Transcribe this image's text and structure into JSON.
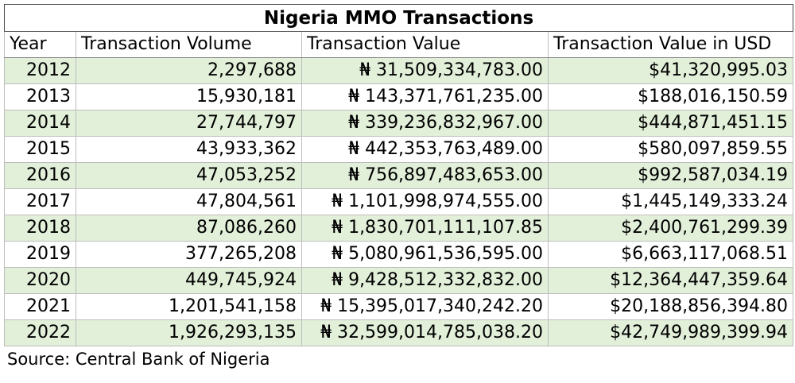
{
  "chart_data": {
    "type": "table",
    "title": "Nigeria MMO Transactions",
    "columns": [
      "Year",
      "Transaction Volume",
      "Transaction Value",
      "Transaction Value in USD"
    ],
    "rows": [
      [
        "2012",
        "2,297,688",
        "₦ 31,509,334,783.00",
        "$41,320,995.03"
      ],
      [
        "2013",
        "15,930,181",
        "₦ 143,371,761,235.00",
        "$188,016,150.59"
      ],
      [
        "2014",
        "27,744,797",
        "₦ 339,236,832,967.00",
        "$444,871,451.15"
      ],
      [
        "2015",
        "43,933,362",
        "₦ 442,353,763,489.00",
        "$580,097,859.55"
      ],
      [
        "2016",
        "47,053,252",
        "₦ 756,897,483,653.00",
        "$992,587,034.19"
      ],
      [
        "2017",
        "47,804,561",
        "₦ 1,101,998,974,555.00",
        "$1,445,149,333.24"
      ],
      [
        "2018",
        "87,086,260",
        "₦ 1,830,701,111,107.85",
        "$2,400,761,299.39"
      ],
      [
        "2019",
        "377,265,208",
        "₦ 5,080,961,536,595.00",
        "$6,663,117,068.51"
      ],
      [
        "2020",
        "449,745,924",
        "₦ 9,428,512,332,832.00",
        "$12,364,447,359.64"
      ],
      [
        "2021",
        "1,201,541,158",
        "₦ 15,395,017,340,242.20",
        "$20,188,856,394.80"
      ],
      [
        "2022",
        "1,926,293,135",
        "₦ 32,599,014,785,038.20",
        "$42,749,989,399.94"
      ]
    ],
    "source": "Source: Central Bank of Nigeria"
  },
  "colors": {
    "row_shade": "#e2efd9",
    "border": "#bdbdbd",
    "title_border": "#4a4a4a"
  }
}
